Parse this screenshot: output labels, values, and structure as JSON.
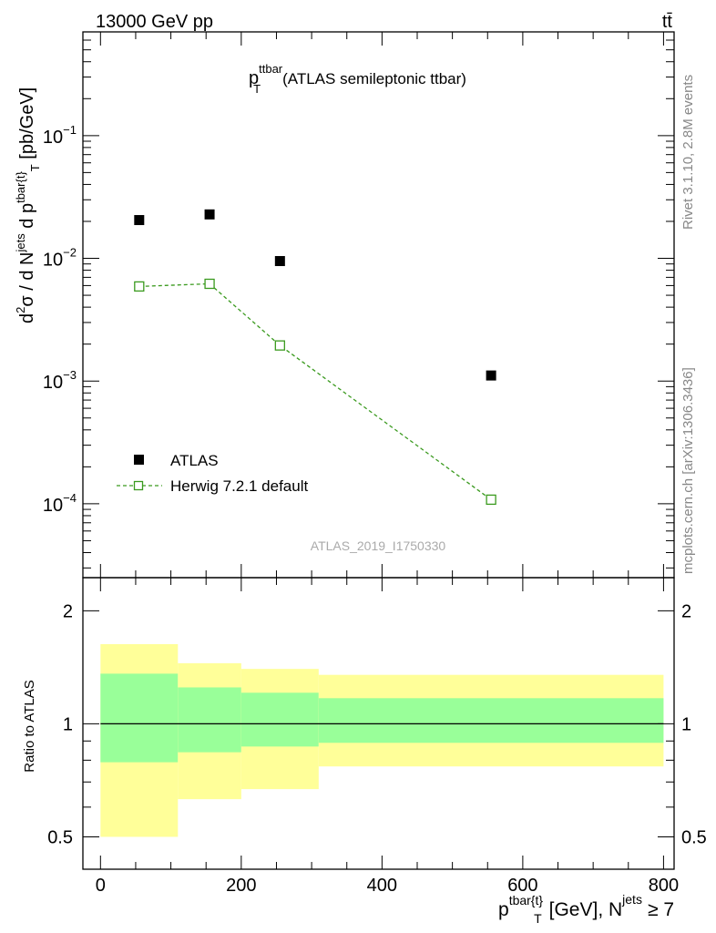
{
  "header": {
    "energy_label": "13000 GeV pp",
    "process_label": "tt̄"
  },
  "side_labels": {
    "rivet": "Rivet 3.1.10,  2.8M events",
    "mcplots": "mcplots.cern.ch [arXiv:1306.3436]"
  },
  "chart_data": [
    {
      "type": "scatter",
      "title_main": "p",
      "title_sup": "ttbar",
      "title_sub": "T",
      "title_rest": "(ATLAS semileptonic ttbar)",
      "watermark": "ATLAS_2019_I1750330",
      "ylabel": "d²σ / d N^jets d p^tbar{t}_T [pb/GeV]",
      "yscale": "log",
      "ylim": [
        2.5e-05,
        0.7
      ],
      "xlim": [
        -25,
        815
      ],
      "ytick_labels": [
        {
          "base": "10",
          "exp": "−1",
          "value": 0.1
        },
        {
          "base": "10",
          "exp": "−2",
          "value": 0.01
        },
        {
          "base": "10",
          "exp": "−3",
          "value": 0.001
        },
        {
          "base": "10",
          "exp": "−4",
          "value": 0.0001
        }
      ],
      "legend_position": "lower-left",
      "series": [
        {
          "name": "ATLAS",
          "marker": "filled-square",
          "color": "#000000",
          "x": [
            55,
            155,
            255,
            555
          ],
          "y": [
            0.0205,
            0.0228,
            0.0095,
            0.00111
          ]
        },
        {
          "name": "Herwig 7.2.1 default",
          "marker": "open-square",
          "line": "dashed",
          "color": "#3a9a1e",
          "x": [
            55,
            155,
            255,
            555
          ],
          "y": [
            0.0059,
            0.0062,
            0.00195,
            0.000108
          ]
        }
      ]
    },
    {
      "type": "area",
      "ylabel": "Ratio to ATLAS",
      "yscale": "log",
      "ylim": [
        0.41,
        2.45
      ],
      "xlim": [
        -25,
        815
      ],
      "xlabel": "p^tbar{t}_T [GeV], N^jets ≥ 7",
      "xlabel_parts": {
        "p": "p",
        "sup": "tbar{t}",
        "sub": "T",
        "unit": "[GeV], N",
        "jets": "jets",
        "cond": "≥ 7"
      },
      "xtick_labels": [
        "0",
        "200",
        "400",
        "600",
        "800"
      ],
      "ytick_labels": [
        "0.5",
        "1",
        "2"
      ],
      "bins": [
        {
          "lo": 0,
          "hi": 110,
          "stat_lo": 0.79,
          "stat_hi": 1.36,
          "tot_lo": 0.5,
          "tot_hi": 1.63
        },
        {
          "lo": 110,
          "hi": 200,
          "stat_lo": 0.84,
          "stat_hi": 1.25,
          "tot_lo": 0.63,
          "tot_hi": 1.45
        },
        {
          "lo": 200,
          "hi": 310,
          "stat_lo": 0.87,
          "stat_hi": 1.21,
          "tot_lo": 0.67,
          "tot_hi": 1.4
        },
        {
          "lo": 310,
          "hi": 800,
          "stat_lo": 0.89,
          "stat_hi": 1.17,
          "tot_lo": 0.77,
          "tot_hi": 1.35
        }
      ],
      "colors": {
        "stat": "#99ff99",
        "total": "#ffff99",
        "ref_line": "#000000"
      }
    }
  ]
}
